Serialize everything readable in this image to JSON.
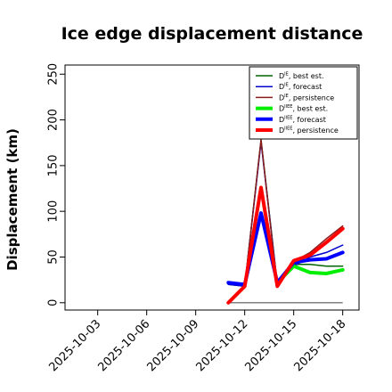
{
  "chart_data": {
    "type": "line",
    "title": "Ice edge displacement distance",
    "xlabel": "",
    "ylabel": "Displacement (km)",
    "xlim": [
      "2025-10-01",
      "2025-10-19"
    ],
    "ylim": [
      -8,
      260
    ],
    "yticks": [
      0,
      50,
      100,
      150,
      200,
      250
    ],
    "xticks": [
      {
        "date": "2025-10-03",
        "label": "2025-10-03",
        "color": "#000000"
      },
      {
        "date": "2025-10-06",
        "label": "2025-10-06",
        "color": "#000000"
      },
      {
        "date": "2025-10-09",
        "label": "2025-10-09",
        "color": "#1a8a1a"
      },
      {
        "date": "2025-10-12",
        "label": "2025-10-12",
        "color": "#000000"
      },
      {
        "date": "2025-10-15",
        "label": "2025-10-15",
        "color": "#000000"
      },
      {
        "date": "2025-10-18",
        "label": "2025-10-18",
        "color": "#000000"
      }
    ],
    "grid": false,
    "legend_position": "top-right",
    "reference_line": {
      "y": 0,
      "from": "2025-10-11",
      "to": "2025-10-18",
      "color": "#808080"
    },
    "series": [
      {
        "name": "D^IE, best est.",
        "sup": "IE",
        "label": ", best est.",
        "color": "#006400",
        "width": 1.5,
        "x": [
          "2025-10-11",
          "2025-10-12",
          "2025-10-13",
          "2025-10-14",
          "2025-10-15",
          "2025-10-16",
          "2025-10-17",
          "2025-10-18"
        ],
        "y": [
          20,
          18,
          178,
          20,
          42,
          42,
          40,
          40
        ]
      },
      {
        "name": "D^IE, forecast",
        "sup": "IE",
        "label": ", forecast",
        "color": "#0000cd",
        "width": 1.5,
        "x": [
          "2025-10-11",
          "2025-10-12",
          "2025-10-13",
          "2025-10-14",
          "2025-10-15",
          "2025-10-16",
          "2025-10-17",
          "2025-10-18"
        ],
        "y": [
          20,
          18,
          176,
          20,
          40,
          50,
          55,
          63
        ]
      },
      {
        "name": "D^IE, persistence",
        "sup": "IE",
        "label": ", persistence",
        "color": "#8b1a1a",
        "width": 1.5,
        "x": [
          "2025-10-11",
          "2025-10-12",
          "2025-10-13",
          "2025-10-14",
          "2025-10-15",
          "2025-10-16",
          "2025-10-17",
          "2025-10-18"
        ],
        "y": [
          0,
          18,
          178,
          17,
          45,
          55,
          70,
          84
        ]
      },
      {
        "name": "D^IIEE, best est.",
        "sup": "IIEE",
        "label": ", best est.",
        "color": "#00ee00",
        "width": 4,
        "x": [
          "2025-10-14",
          "2025-10-15",
          "2025-10-16",
          "2025-10-17",
          "2025-10-18"
        ],
        "y": [
          22,
          40,
          33,
          32,
          36
        ]
      },
      {
        "name": "D^IIEE, forecast",
        "sup": "IIEE",
        "label": ", forecast",
        "color": "#0000ff",
        "width": 4,
        "x": [
          "2025-10-11",
          "2025-10-12",
          "2025-10-13",
          "2025-10-14",
          "2025-10-15",
          "2025-10-16",
          "2025-10-17",
          "2025-10-18"
        ],
        "y": [
          22,
          20,
          98,
          22,
          44,
          47,
          48,
          55
        ]
      },
      {
        "name": "D^IIEE, persistence",
        "sup": "IIEE",
        "label": ", persistence",
        "color": "#ff0000",
        "width": 4,
        "x": [
          "2025-10-11",
          "2025-10-12",
          "2025-10-13",
          "2025-10-14",
          "2025-10-15",
          "2025-10-16",
          "2025-10-17",
          "2025-10-18"
        ],
        "y": [
          0,
          18,
          126,
          18,
          46,
          52,
          66,
          81
        ]
      }
    ]
  }
}
